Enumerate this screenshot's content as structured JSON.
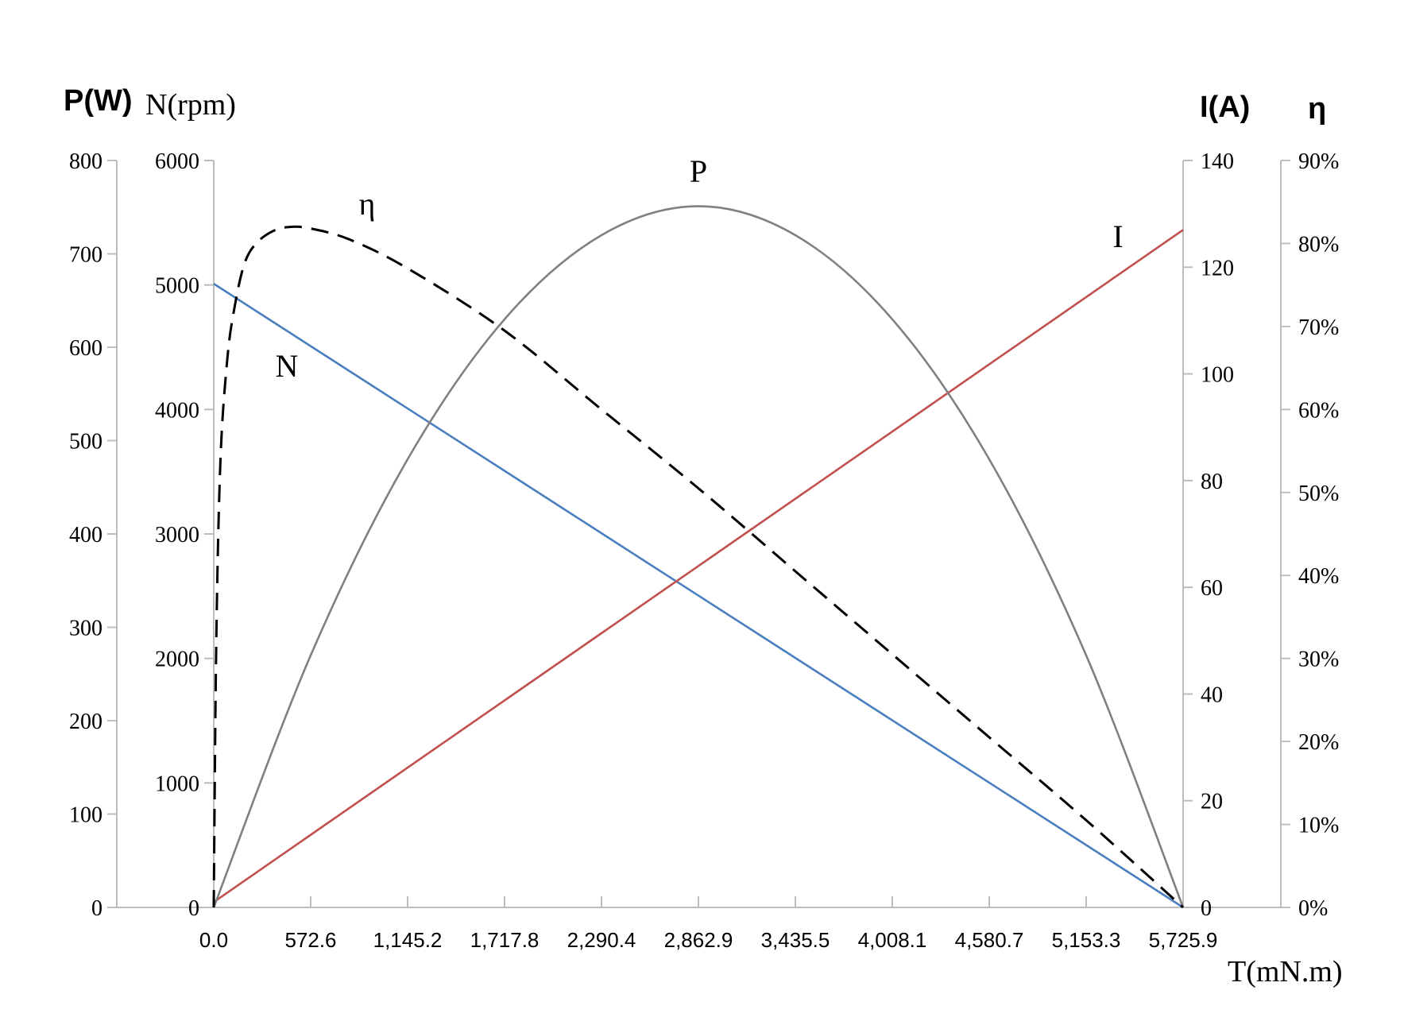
{
  "chart_data": {
    "type": "line",
    "x": {
      "label": "T(mN.m)",
      "range": [
        0,
        5725.9
      ],
      "ticks": [
        0,
        572.6,
        1145.2,
        1717.8,
        2290.4,
        2862.9,
        3435.5,
        4008.1,
        4580.7,
        5153.3,
        5725.9
      ],
      "tick_labels": [
        "0.0",
        "572.6",
        "1,145.2",
        "1,717.8",
        "2,290.4",
        "2,862.9",
        "3,435.5",
        "4,008.1",
        "4,580.7",
        "5,153.3",
        "5,725.9"
      ]
    },
    "axes": {
      "P": {
        "title": "P(W)",
        "range": [
          0,
          800
        ],
        "ticks": [
          0,
          100,
          200,
          300,
          400,
          500,
          600,
          700,
          800
        ],
        "side": "left-outer"
      },
      "N": {
        "title": "N(rpm)",
        "range": [
          0,
          6000
        ],
        "ticks": [
          0,
          1000,
          2000,
          3000,
          4000,
          5000,
          6000
        ],
        "side": "left-inner"
      },
      "I": {
        "title": "I(A)",
        "range": [
          0,
          140
        ],
        "ticks": [
          0,
          20,
          40,
          60,
          80,
          100,
          120,
          140
        ],
        "side": "right-inner"
      },
      "eta": {
        "title": "η",
        "range": [
          0,
          0.9
        ],
        "ticks": [
          0,
          0.1,
          0.2,
          0.3,
          0.4,
          0.5,
          0.6,
          0.7,
          0.8,
          0.9
        ],
        "tick_labels": [
          "0%",
          "10%",
          "20%",
          "30%",
          "40%",
          "50%",
          "60%",
          "70%",
          "80%",
          "90%"
        ],
        "side": "right-outer"
      }
    },
    "series": [
      {
        "name": "N",
        "axis": "N",
        "color": "#4a7ebf",
        "style": "solid",
        "x": [
          0,
          5725.9
        ],
        "y": [
          5010,
          0
        ]
      },
      {
        "name": "I",
        "axis": "I",
        "color": "#c0504d",
        "style": "solid",
        "x": [
          0,
          5725.9
        ],
        "y": [
          1,
          127
        ]
      },
      {
        "name": "P",
        "axis": "P",
        "color": "#808080",
        "style": "solid",
        "x": [
          0,
          572.6,
          1145.2,
          1717.8,
          2290.4,
          2862.9,
          3435.5,
          4008.1,
          4580.7,
          5153.3,
          5725.9
        ],
        "y": [
          0,
          270,
          480,
          630,
          720,
          751,
          720,
          630,
          480,
          270,
          0
        ]
      },
      {
        "name": "η",
        "axis": "eta",
        "color": "#000000",
        "style": "dashed",
        "x": [
          0,
          15,
          40,
          80,
          120,
          180,
          250,
          350,
          450,
          572.6,
          800,
          1145.2,
          1717.8,
          2290.4,
          2862.9,
          3435.5,
          4008.1,
          4580.7,
          5153.3,
          5725.9
        ],
        "y": [
          0,
          0.32,
          0.54,
          0.66,
          0.72,
          0.775,
          0.8,
          0.815,
          0.82,
          0.818,
          0.805,
          0.77,
          0.695,
          0.6,
          0.505,
          0.405,
          0.305,
          0.205,
          0.105,
          0
        ]
      }
    ],
    "curve_labels": [
      "N",
      "I",
      "P",
      "η"
    ],
    "grid": false,
    "legend": "none"
  }
}
